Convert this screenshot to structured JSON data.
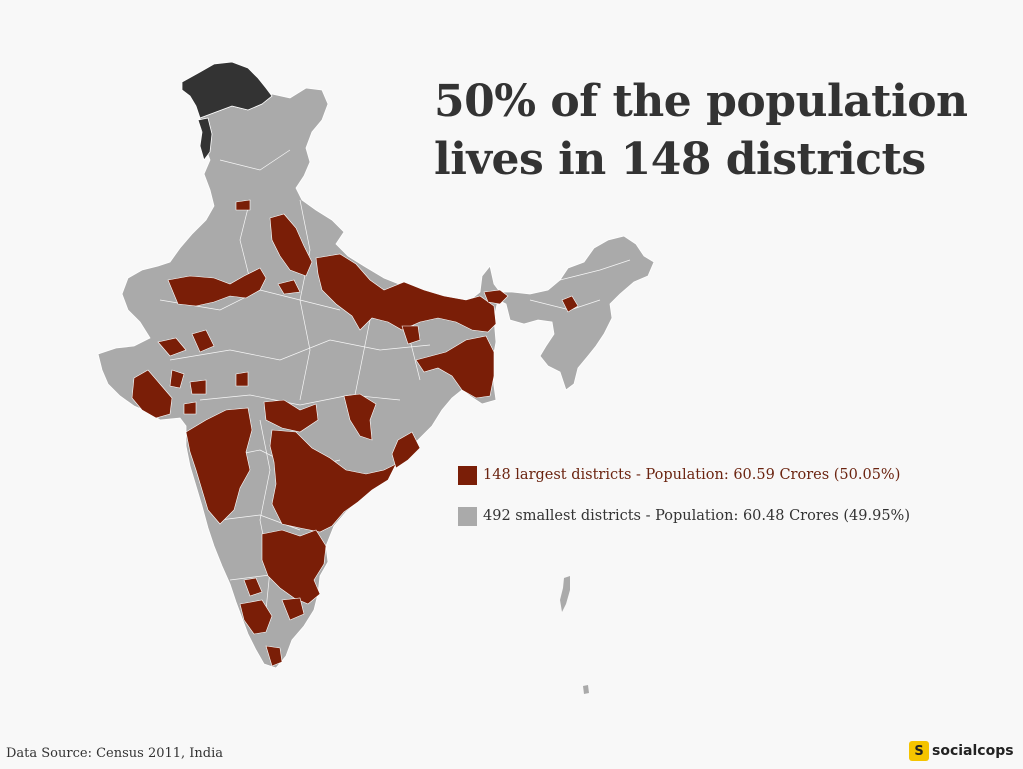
{
  "title": {
    "line1": "50% of the population",
    "line2": "lives in 148 districts"
  },
  "legend": [
    {
      "label": "148 largest districts - Population: 60.59 Crores (50.05%)",
      "color": "#7a1e07",
      "text_color": "#6b2410"
    },
    {
      "label": "492 smallest districts - Population: 60.48 Crores (49.95%)",
      "color": "#aaaaaa",
      "text_color": "#333333"
    }
  ],
  "source": "Data Source: Census 2011, India",
  "brand": {
    "mark": "S",
    "name": "socialcops",
    "mark_color": "#f5c400"
  },
  "colors": {
    "background": "#f8f8f8",
    "region_default": "#aaaaaa",
    "region_highlight": "#7a1e07",
    "region_dark": "#333333",
    "district_border": "#ffffff"
  },
  "map": {
    "country": "India",
    "highlighted_district_count": 148,
    "other_district_count": 492
  }
}
